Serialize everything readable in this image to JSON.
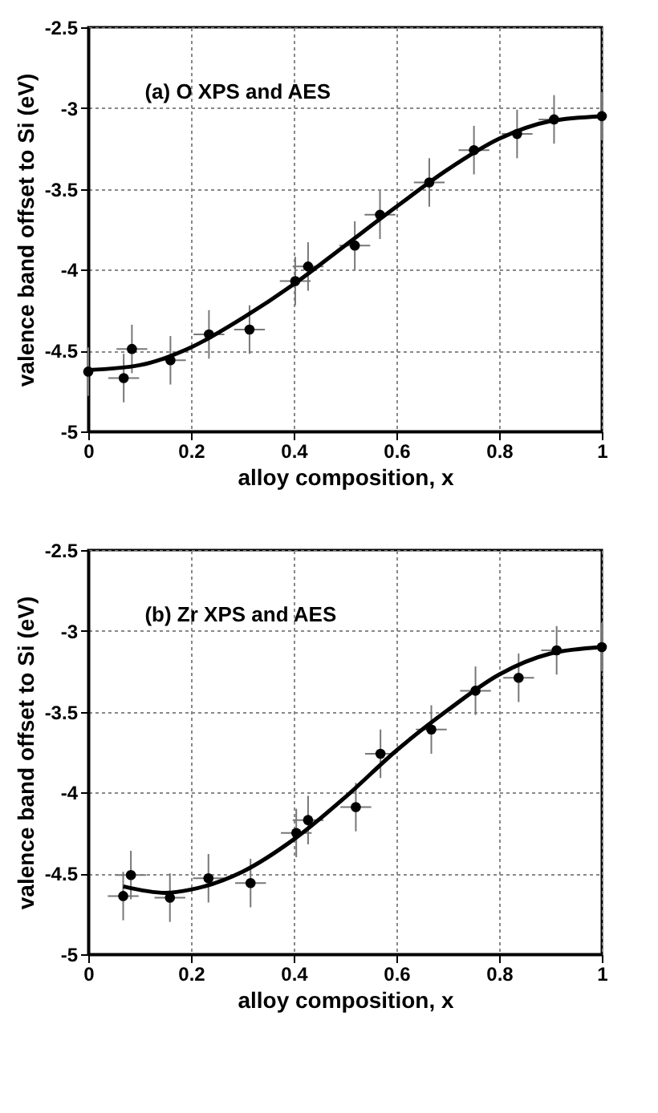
{
  "chart_data": [
    {
      "type": "scatter",
      "xlabel": "alloy composition, x",
      "ylabel": "valence band offset to Si (eV)",
      "annotations": [
        "(a) O XPS and AES"
      ],
      "xlim": [
        0,
        1
      ],
      "ylim": [
        -5,
        -2.5
      ],
      "xticks": [
        0,
        0.2,
        0.4,
        0.6,
        0.8,
        1
      ],
      "yticks": [
        -5,
        -4.5,
        -4,
        -3.5,
        -3,
        -2.5
      ],
      "grid": true,
      "series": [
        {
          "marker": "circle",
          "color": "#000000",
          "x": [
            0,
            0.069,
            0.085,
            0.16,
            0.235,
            0.314,
            0.403,
            0.428,
            0.519,
            0.568,
            0.664,
            0.751,
            0.835,
            0.907,
            1.0
          ],
          "values": [
            -4.63,
            -4.67,
            -4.49,
            -4.56,
            -4.4,
            -4.37,
            -4.07,
            -3.98,
            -3.85,
            -3.66,
            -3.46,
            -3.26,
            -3.16,
            -3.07,
            -3.05
          ],
          "errors": [
            0.15,
            0.15,
            0.15,
            0.15,
            0.15,
            0.15,
            0.15,
            0.15,
            0.15,
            0.15,
            0.15,
            0.15,
            0.15,
            0.15,
            0.15
          ],
          "xerrors": [
            null,
            0.03,
            0.03,
            0.03,
            0.03,
            0.03,
            0.03,
            0.03,
            0.03,
            0.03,
            0.03,
            0.03,
            0.03,
            0.03,
            null
          ]
        },
        {
          "type": "line",
          "color": "#000000",
          "x": [
            0,
            0.1,
            0.2,
            0.3,
            0.4,
            0.5,
            0.6,
            0.7,
            0.8,
            0.9,
            1.0
          ],
          "values": [
            -4.62,
            -4.59,
            -4.48,
            -4.3,
            -4.09,
            -3.85,
            -3.61,
            -3.38,
            -3.19,
            -3.08,
            -3.05
          ]
        }
      ]
    },
    {
      "type": "scatter",
      "xlabel": "alloy composition, x",
      "ylabel": "valence band offset to Si (eV)",
      "annotations": [
        "(b) Zr XPS and AES"
      ],
      "xlim": [
        0,
        1
      ],
      "ylim": [
        -5,
        -2.5
      ],
      "xticks": [
        0,
        0.2,
        0.4,
        0.6,
        0.8,
        1
      ],
      "yticks": [
        -5,
        -4.5,
        -4,
        -3.5,
        -3,
        -2.5
      ],
      "grid": true,
      "series": [
        {
          "marker": "circle",
          "color": "#000000",
          "x": [
            0.068,
            0.083,
            0.159,
            0.234,
            0.316,
            0.405,
            0.428,
            0.521,
            0.569,
            0.668,
            0.754,
            0.838,
            0.912,
            1.0
          ],
          "values": [
            -4.64,
            -4.51,
            -4.65,
            -4.53,
            -4.56,
            -4.25,
            -4.17,
            -4.09,
            -3.76,
            -3.61,
            -3.37,
            -3.29,
            -3.12,
            -3.1
          ],
          "errors": [
            0.15,
            0.15,
            0.15,
            0.15,
            0.15,
            0.15,
            0.15,
            0.15,
            0.15,
            0.15,
            0.15,
            0.15,
            0.15,
            0.15
          ],
          "xerrors": [
            0.03,
            0.03,
            0.03,
            0.03,
            0.03,
            0.03,
            0.03,
            0.03,
            0.03,
            0.03,
            0.03,
            0.03,
            0.03,
            null
          ]
        },
        {
          "type": "line",
          "color": "#000000",
          "x": [
            0.068,
            0.15,
            0.2,
            0.3,
            0.4,
            0.5,
            0.6,
            0.7,
            0.8,
            0.9,
            1.0
          ],
          "values": [
            -4.58,
            -4.62,
            -4.6,
            -4.49,
            -4.29,
            -4.03,
            -3.74,
            -3.49,
            -3.27,
            -3.14,
            -3.1
          ]
        }
      ]
    }
  ]
}
